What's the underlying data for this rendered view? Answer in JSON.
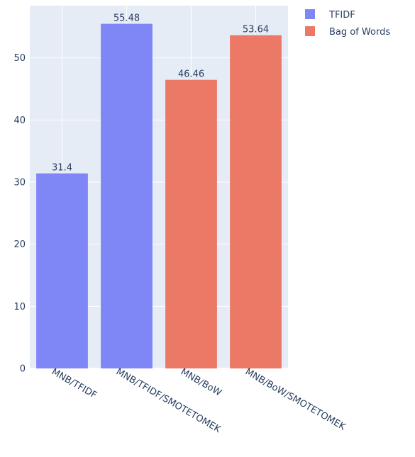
{
  "chart_data": {
    "type": "bar",
    "categories": [
      "MNB/TFIDF",
      "MNB/TFIDF/SMOTETOMEK",
      "MNB/BoW",
      "MNB/BoW/SMOTETOMEK"
    ],
    "series": [
      {
        "name": "TFIDF",
        "color": "#7f87f6",
        "points": [
          {
            "category": "MNB/TFIDF",
            "value": 31.4,
            "label": "31.4"
          },
          {
            "category": "MNB/TFIDF/SMOTETOMEK",
            "value": 55.48,
            "label": "55.48"
          }
        ]
      },
      {
        "name": "Bag of Words",
        "color": "#ec7866",
        "points": [
          {
            "category": "MNB/BoW",
            "value": 46.46,
            "label": "46.46"
          },
          {
            "category": "MNB/BoW/SMOTETOMEK",
            "value": 53.64,
            "label": "53.64"
          }
        ]
      }
    ],
    "y_ticks": [
      0,
      10,
      20,
      30,
      40,
      50
    ],
    "ylim": [
      0,
      58.4
    ],
    "grid": true,
    "legend_position": "top-right",
    "plot_background": "#e5ecf6",
    "grid_color": "#ffffff",
    "text_color": "#2a3f5f"
  }
}
